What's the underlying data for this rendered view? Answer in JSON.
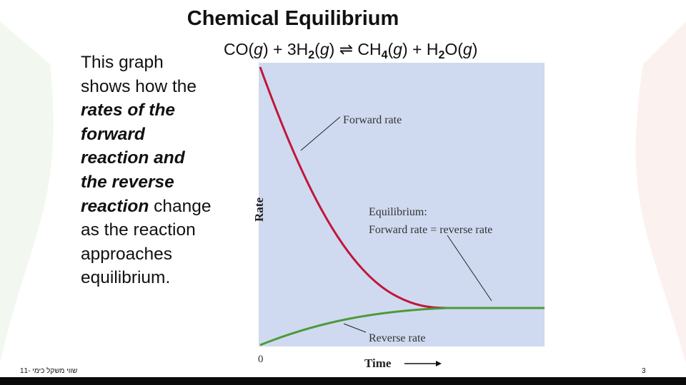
{
  "header": {
    "title": "Chemical Equilibrium"
  },
  "equation": {
    "parts": [
      "CO(",
      "g",
      ") + 3H",
      "2",
      "(",
      "g",
      ") ",
      "⇌",
      " CH",
      "4",
      "(",
      "g",
      ") + H",
      "2",
      "O(",
      "g",
      ")"
    ]
  },
  "body": {
    "parts": [
      "This graph shows how the ",
      "rates of the forward reaction and the reverse reaction",
      " change as the reaction approaches equilibrium."
    ]
  },
  "graph": {
    "y_axis_label": "Rate",
    "x_axis_label": "Time",
    "origin_label": "0",
    "forward_label": "Forward rate",
    "equilibrium_label": [
      "Equilibrium:",
      "Forward rate = reverse rate"
    ],
    "reverse_label": "Reverse rate"
  },
  "footer": {
    "left": "שווי משקל כימי -11",
    "page_number": "3"
  }
}
